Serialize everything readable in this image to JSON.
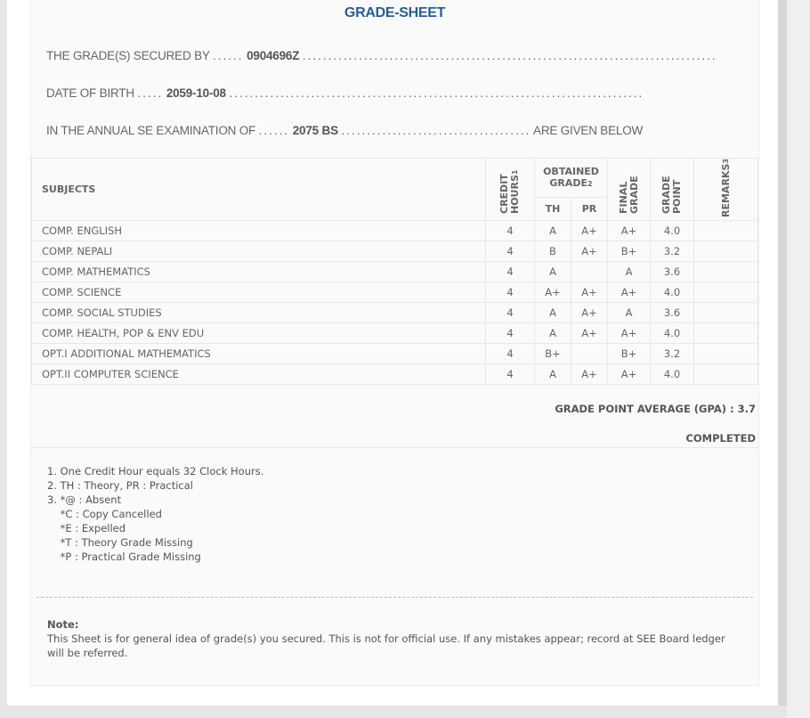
{
  "title": "GRADE-SHEET",
  "secured_by": {
    "label": "THE GRADE(S) SECURED BY",
    "value": "0904696Z"
  },
  "dob": {
    "label": "DATE OF BIRTH",
    "value": "2059-10-08"
  },
  "exam": {
    "label": "IN THE ANNUAL SE EXAMINATION OF",
    "value": "2075 BS",
    "suffix": "ARE GIVEN BELOW"
  },
  "headers": {
    "subjects": "SUBJECTS",
    "credit": "CREDIT HOURS",
    "credit_sup": "1",
    "obtained": "OBTAINED GRADE",
    "obtained_sup": "2",
    "th": "TH",
    "pr": "PR",
    "final": "FINAL GRADE",
    "gp": "GRADE POINT",
    "remarks": "REMARKS",
    "remarks_sup": "3"
  },
  "rows": [
    {
      "subject": "COMP. ENGLISH",
      "credit": "4",
      "th": "A",
      "pr": "A+",
      "final": "A+",
      "gp": "4.0",
      "remarks": ""
    },
    {
      "subject": "COMP. NEPALI",
      "credit": "4",
      "th": "B",
      "pr": "A+",
      "final": "B+",
      "gp": "3.2",
      "remarks": ""
    },
    {
      "subject": "COMP. MATHEMATICS",
      "credit": "4",
      "th": "A",
      "pr": "",
      "final": "A",
      "gp": "3.6",
      "remarks": ""
    },
    {
      "subject": "COMP. SCIENCE",
      "credit": "4",
      "th": "A+",
      "pr": "A+",
      "final": "A+",
      "gp": "4.0",
      "remarks": ""
    },
    {
      "subject": "COMP. SOCIAL STUDIES",
      "credit": "4",
      "th": "A",
      "pr": "A+",
      "final": "A",
      "gp": "3.6",
      "remarks": ""
    },
    {
      "subject": "COMP. HEALTH, POP & ENV EDU",
      "credit": "4",
      "th": "A",
      "pr": "A+",
      "final": "A+",
      "gp": "4.0",
      "remarks": ""
    },
    {
      "subject": "OPT.I ADDITIONAL MATHEMATICS",
      "credit": "4",
      "th": "B+",
      "pr": "",
      "final": "B+",
      "gp": "3.2",
      "remarks": ""
    },
    {
      "subject": "OPT.II COMPUTER SCIENCE",
      "credit": "4",
      "th": "A",
      "pr": "A+",
      "final": "A+",
      "gp": "4.0",
      "remarks": ""
    }
  ],
  "gpa": "GRADE POINT AVERAGE (GPA) : 3.7",
  "status": "COMPLETED",
  "footnotes": [
    "1. One Credit Hour equals 32 Clock Hours.",
    "2. TH : Theory, PR : Practical",
    "3. *@ : Absent",
    "    *C : Copy Cancelled",
    "    *E : Expelled",
    "    *T : Theory Grade Missing",
    "    *P : Practical Grade Missing"
  ],
  "note": {
    "heading": "Note:",
    "text": "This Sheet is for general idea of grade(s) you secured. This is not for official use. If any mistakes appear; record at SEE Board ledger will be referred."
  }
}
